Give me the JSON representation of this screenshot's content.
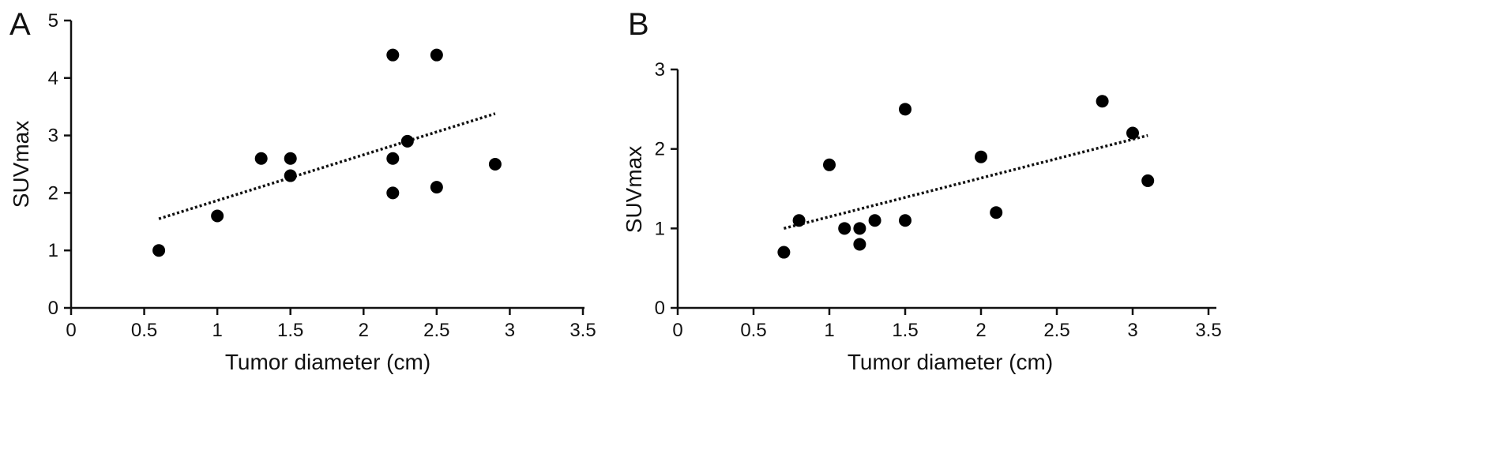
{
  "chart_data": [
    {
      "type": "scatter",
      "panel_label": "A",
      "xlabel": "Tumor diameter (cm)",
      "ylabel": "SUVmax",
      "xlim": [
        0,
        3.5
      ],
      "ylim": [
        0,
        5
      ],
      "xticks": [
        "0",
        "0.5",
        "1",
        "1.5",
        "2",
        "2.5",
        "3",
        "3.5"
      ],
      "yticks": [
        "0",
        "1",
        "2",
        "3",
        "4",
        "5"
      ],
      "points": [
        {
          "x": 0.6,
          "y": 1.0
        },
        {
          "x": 1.0,
          "y": 1.6
        },
        {
          "x": 1.3,
          "y": 2.6
        },
        {
          "x": 1.5,
          "y": 2.6
        },
        {
          "x": 1.5,
          "y": 2.3
        },
        {
          "x": 2.2,
          "y": 4.4
        },
        {
          "x": 2.2,
          "y": 2.6
        },
        {
          "x": 2.2,
          "y": 2.0
        },
        {
          "x": 2.3,
          "y": 2.9
        },
        {
          "x": 2.5,
          "y": 4.4
        },
        {
          "x": 2.5,
          "y": 2.1
        },
        {
          "x": 2.9,
          "y": 2.5
        }
      ],
      "trendline": {
        "x": [
          0.6,
          2.9
        ],
        "y": [
          1.55,
          3.38
        ],
        "style": "dotted"
      },
      "grid": false
    },
    {
      "type": "scatter",
      "panel_label": "B",
      "xlabel": "Tumor diameter (cm)",
      "ylabel": "SUVmax",
      "xlim": [
        0,
        3.5
      ],
      "ylim": [
        0,
        3
      ],
      "xticks": [
        "0",
        "0.5",
        "1",
        "1.5",
        "2",
        "2.5",
        "3",
        "3.5"
      ],
      "yticks": [
        "0",
        "1",
        "2",
        "3"
      ],
      "points": [
        {
          "x": 0.7,
          "y": 0.7
        },
        {
          "x": 0.8,
          "y": 1.1
        },
        {
          "x": 1.0,
          "y": 1.8
        },
        {
          "x": 1.1,
          "y": 1.0
        },
        {
          "x": 1.2,
          "y": 1.0
        },
        {
          "x": 1.2,
          "y": 0.8
        },
        {
          "x": 1.3,
          "y": 1.1
        },
        {
          "x": 1.5,
          "y": 2.5
        },
        {
          "x": 1.5,
          "y": 1.1
        },
        {
          "x": 2.0,
          "y": 1.9
        },
        {
          "x": 2.1,
          "y": 1.2
        },
        {
          "x": 2.8,
          "y": 2.6
        },
        {
          "x": 3.0,
          "y": 2.2
        },
        {
          "x": 3.1,
          "y": 1.6
        }
      ],
      "trendline": {
        "x": [
          0.7,
          3.1
        ],
        "y": [
          1.0,
          2.17
        ],
        "style": "dotted"
      },
      "grid": false
    }
  ]
}
